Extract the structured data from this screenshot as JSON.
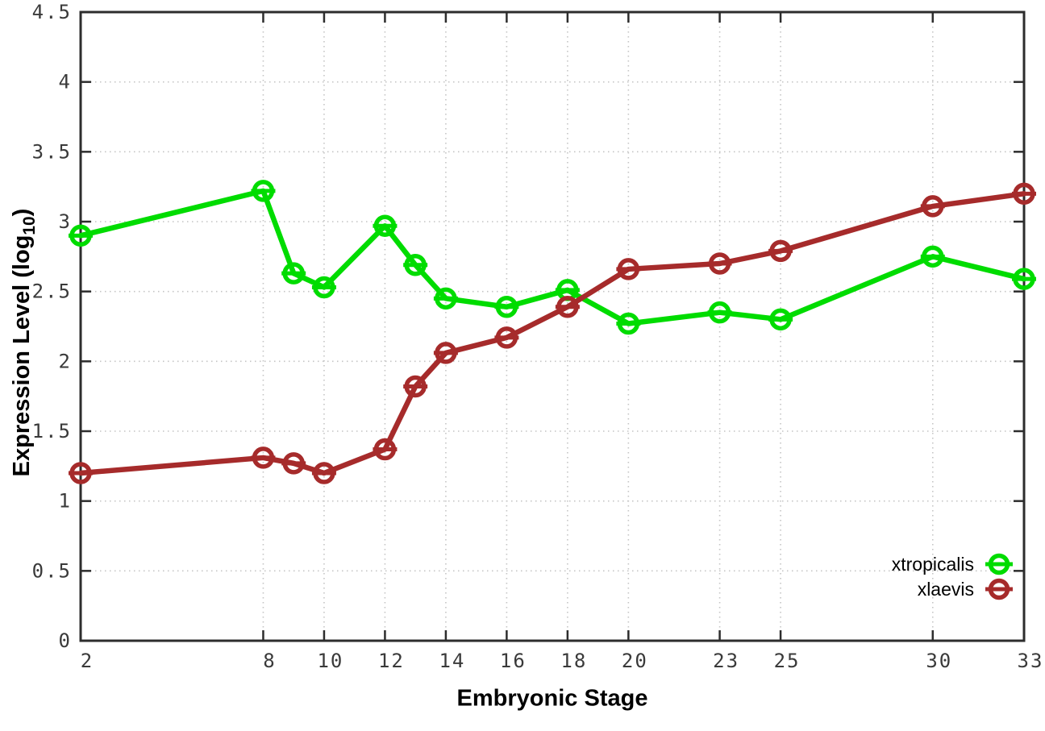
{
  "chart_data": {
    "type": "line",
    "title": "",
    "xlabel": "Embryonic Stage",
    "ylabel": "Expression Level (log10)",
    "ylabel_main": "Expression Level (log",
    "ylabel_sub": "10",
    "ylabel_close": ")",
    "xlim": [
      2,
      33
    ],
    "ylim": [
      0,
      4.5
    ],
    "x": [
      2,
      8,
      9,
      10,
      12,
      13,
      14,
      16,
      18,
      20,
      23,
      25,
      30,
      33
    ],
    "xticks": [
      2,
      8,
      10,
      12,
      14,
      16,
      18,
      20,
      23,
      25,
      30,
      33
    ],
    "yticks": [
      0,
      0.5,
      1,
      1.5,
      2,
      2.5,
      3,
      3.5,
      4,
      4.5
    ],
    "grid": true,
    "legend_position": "bottom-right",
    "marker": "open-circle-with-errorbar-cap",
    "series": [
      {
        "name": "xtropicalis",
        "color": "#00dc00",
        "values": [
          2.9,
          3.22,
          2.63,
          2.53,
          2.97,
          2.69,
          2.45,
          2.39,
          2.51,
          2.27,
          2.35,
          2.3,
          2.75,
          2.59
        ]
      },
      {
        "name": "xlaevis",
        "color": "#a62b2b",
        "values": [
          1.2,
          1.31,
          1.27,
          1.2,
          1.37,
          1.82,
          2.06,
          2.17,
          2.39,
          2.66,
          2.7,
          2.79,
          3.11,
          3.2
        ]
      }
    ],
    "style_colors": {
      "grid": "#c4c4c4",
      "axis": "#2d2d2d",
      "tick_label": "#3a3a3a",
      "legend_text": "#000000",
      "background": "#ffffff"
    }
  }
}
